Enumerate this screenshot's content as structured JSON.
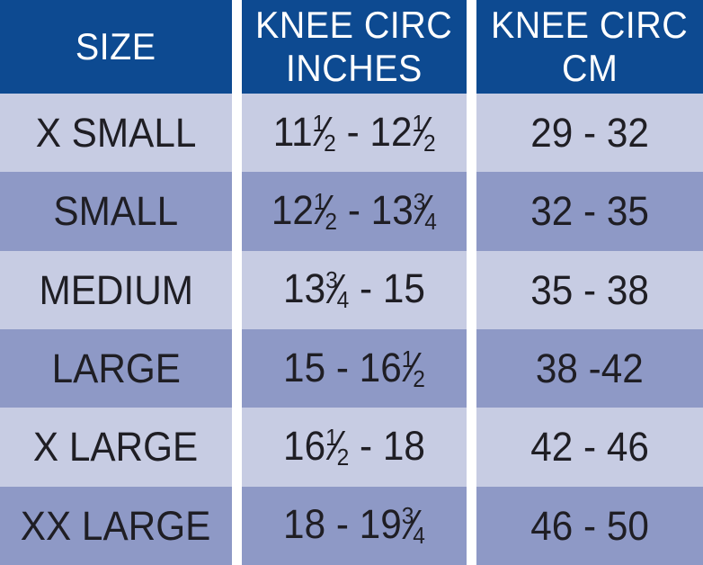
{
  "colors": {
    "header_bg": "#0d4a91",
    "header_text": "#ffffff",
    "row_light": "#c7cce3",
    "row_dark": "#8e99c6",
    "text": "#1f1e24",
    "divider": "#ffffff"
  },
  "table": {
    "headers": [
      {
        "lines": [
          "SIZE"
        ]
      },
      {
        "lines": [
          "KNEE CIRC",
          "INCHES"
        ]
      },
      {
        "lines": [
          "KNEE CIRC",
          "CM"
        ]
      }
    ],
    "rows": [
      {
        "size": "X SMALL",
        "inches_text": "11½ - 12½",
        "inches_tokens": [
          {
            "t": "text",
            "v": "11"
          },
          {
            "t": "frac",
            "n": "1",
            "d": "2"
          },
          {
            "t": "text",
            "v": " - 12"
          },
          {
            "t": "frac",
            "n": "1",
            "d": "2"
          }
        ],
        "cm": "29 - 32"
      },
      {
        "size": "SMALL",
        "inches_text": "12½ - 13¾",
        "inches_tokens": [
          {
            "t": "text",
            "v": "12"
          },
          {
            "t": "frac",
            "n": "1",
            "d": "2"
          },
          {
            "t": "text",
            "v": " - 13"
          },
          {
            "t": "frac",
            "n": "3",
            "d": "4"
          }
        ],
        "cm": "32 - 35"
      },
      {
        "size": "MEDIUM",
        "inches_text": "13¾ - 15",
        "inches_tokens": [
          {
            "t": "text",
            "v": "13"
          },
          {
            "t": "frac",
            "n": "3",
            "d": "4"
          },
          {
            "t": "text",
            "v": " - 15"
          }
        ],
        "cm": "35 - 38"
      },
      {
        "size": "LARGE",
        "inches_text": "15 - 16½",
        "inches_tokens": [
          {
            "t": "text",
            "v": "15 - 16"
          },
          {
            "t": "frac",
            "n": "1",
            "d": "2"
          }
        ],
        "cm": "38 -42"
      },
      {
        "size": "X LARGE",
        "inches_text": "16½ - 18",
        "inches_tokens": [
          {
            "t": "text",
            "v": "16"
          },
          {
            "t": "frac",
            "n": "1",
            "d": "2"
          },
          {
            "t": "text",
            "v": " - 18"
          }
        ],
        "cm": "42 - 46"
      },
      {
        "size": "XX LARGE",
        "inches_text": "18 - 19¾",
        "inches_tokens": [
          {
            "t": "text",
            "v": "18 - 19"
          },
          {
            "t": "frac",
            "n": "3",
            "d": "4"
          }
        ],
        "cm": "46 - 50"
      }
    ]
  },
  "chart_data": {
    "type": "table",
    "columns": [
      "SIZE",
      "KNEE CIRC INCHES",
      "KNEE CIRC CM"
    ],
    "rows": [
      [
        "X SMALL",
        "11½ - 12½",
        "29 - 32"
      ],
      [
        "SMALL",
        "12½ - 13¾",
        "32 - 35"
      ],
      [
        "MEDIUM",
        "13¾ - 15",
        "35 - 38"
      ],
      [
        "LARGE",
        "15 - 16½",
        "38 -42"
      ],
      [
        "X LARGE",
        "16½ - 18",
        "42 - 46"
      ],
      [
        "XX LARGE",
        "18 - 19¾",
        "46 - 50"
      ]
    ]
  }
}
